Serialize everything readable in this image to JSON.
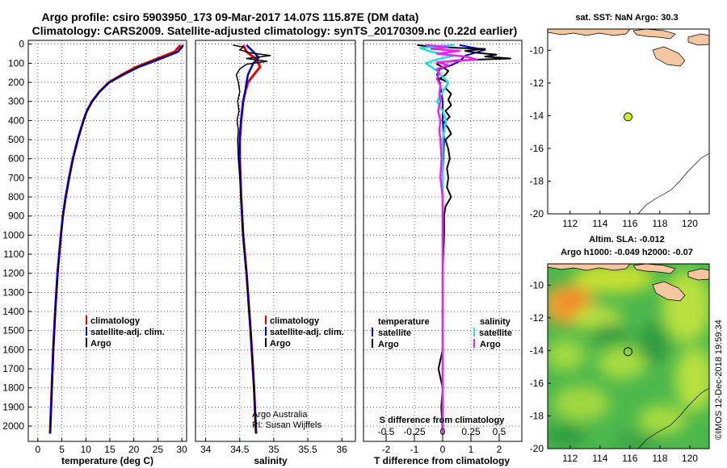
{
  "title_line1": "Argo profile: csiro 5903950_173 09-Mar-2017 14.07S 115.87E (DM data)",
  "title_line2": "Climatology: CARS2009. Satellite-adjusted climatology: synTS_20170309.nc (0.22d earlier)",
  "watermark": "©IMOS 12-Dec-2018 19:59:34",
  "colors": {
    "climatology": "#e00000",
    "satellite": "#0000cc",
    "argo": "#000000",
    "sal_sat": "#22dddd",
    "sal_argo": "#ee22ee",
    "land": "#f4c7a1",
    "map_dot": "#ccee22"
  },
  "chart_data": [
    {
      "id": "temperature",
      "type": "line",
      "xlabel": "temperature (deg C)",
      "ylabel": "",
      "xlim": [
        -2,
        31
      ],
      "ylim": [
        2080,
        -20
      ],
      "xticks": [
        0,
        5,
        10,
        15,
        20,
        25,
        30
      ],
      "yticks": [
        0,
        100,
        200,
        300,
        400,
        500,
        600,
        700,
        800,
        900,
        1000,
        1100,
        1200,
        1300,
        1400,
        1500,
        1600,
        1700,
        1800,
        1900,
        2000
      ],
      "legend": [
        "climatology",
        "satellite-adj. clim.",
        "Argo"
      ],
      "series": [
        {
          "name": "climatology",
          "depth": [
            5,
            40,
            80,
            120,
            160,
            200,
            250,
            300,
            350,
            400,
            450,
            500,
            600,
            700,
            800,
            900,
            1000,
            1200,
            1400,
            1600,
            1800,
            2000,
            2040
          ],
          "values": [
            29.7,
            28.5,
            24.5,
            20.5,
            17.5,
            14.8,
            12.8,
            11.3,
            10.2,
            9.5,
            8.9,
            8.3,
            7.3,
            6.5,
            5.8,
            5.2,
            4.8,
            4.1,
            3.6,
            3.2,
            2.9,
            2.6,
            2.55
          ]
        },
        {
          "name": "satellite-adj. clim.",
          "depth": [
            5,
            40,
            80,
            120,
            160,
            200,
            250,
            300,
            350,
            400,
            450,
            500,
            600,
            700,
            800,
            900,
            1000,
            1200,
            1400,
            1600,
            1800,
            2000,
            2040
          ],
          "values": [
            30.3,
            29.2,
            25.2,
            21,
            17.8,
            14.9,
            12.8,
            11.3,
            10.2,
            9.5,
            8.9,
            8.3,
            7.3,
            6.5,
            5.8,
            5.2,
            4.8,
            4.1,
            3.6,
            3.2,
            2.9,
            2.6,
            2.55
          ]
        },
        {
          "name": "Argo",
          "depth": [
            5,
            20,
            45,
            80,
            120,
            160,
            200,
            250,
            300,
            350,
            400,
            450,
            500,
            600,
            700,
            800,
            900,
            1000,
            1200,
            1400,
            1600,
            1800,
            2000,
            2030
          ],
          "values": [
            30.3,
            30.1,
            28.8,
            24.6,
            20.7,
            17.6,
            14.9,
            12.9,
            11.4,
            10.3,
            9.6,
            9,
            8.4,
            7.4,
            6.6,
            5.9,
            5.3,
            4.9,
            4.2,
            3.7,
            3.3,
            3,
            2.7,
            2.65
          ]
        }
      ]
    },
    {
      "id": "salinity",
      "type": "line",
      "xlabel": "salinity",
      "ylabel": "",
      "xlim": [
        33.85,
        36.2
      ],
      "ylim": [
        2080,
        -20
      ],
      "xticks": [
        34,
        34.5,
        35,
        35.5,
        36
      ],
      "xtick_labels": [
        "34",
        "34.5",
        "35",
        "35.5",
        "36"
      ],
      "legend": [
        "climatology",
        "satellite-adj. clim.",
        "Argo"
      ],
      "credit_line1": "Argo Australia",
      "credit_line2": "PI: Susan Wijffels",
      "series": [
        {
          "name": "climatology",
          "depth": [
            5,
            40,
            80,
            120,
            150,
            200,
            250,
            300,
            400,
            500,
            600,
            800,
            1000,
            1200,
            1500,
            1800,
            2040
          ],
          "values": [
            34.55,
            34.6,
            34.75,
            34.8,
            34.73,
            34.62,
            34.58,
            34.55,
            34.52,
            34.5,
            34.5,
            34.52,
            34.55,
            34.6,
            34.66,
            34.71,
            34.74
          ]
        },
        {
          "name": "satellite-adj. clim.",
          "depth": [
            5,
            40,
            70,
            100,
            130,
            160,
            200,
            250,
            300,
            400,
            500,
            600,
            800,
            1000,
            1200,
            1500,
            1800,
            2040
          ],
          "values": [
            34.6,
            34.7,
            34.78,
            34.7,
            34.66,
            34.62,
            34.6,
            34.58,
            34.55,
            34.52,
            34.5,
            34.5,
            34.52,
            34.55,
            34.6,
            34.66,
            34.71,
            34.74
          ]
        },
        {
          "name": "Argo",
          "depth": [
            5,
            15,
            30,
            45,
            60,
            75,
            90,
            105,
            130,
            160,
            200,
            250,
            300,
            350,
            400,
            450,
            500,
            600,
            700,
            800,
            1000,
            1200,
            1400,
            1600,
            1800,
            2000,
            2030
          ],
          "values": [
            34.4,
            34.55,
            34.5,
            34.65,
            34.95,
            34.6,
            34.9,
            34.6,
            34.5,
            34.45,
            34.48,
            34.5,
            34.47,
            34.49,
            34.46,
            34.48,
            34.47,
            34.48,
            34.5,
            34.52,
            34.55,
            34.6,
            34.64,
            34.68,
            34.71,
            34.73,
            34.74
          ]
        }
      ]
    },
    {
      "id": "difference",
      "type": "line",
      "xlabel": "T difference from climatology",
      "xlabel2": "S difference from climatology",
      "xlim": [
        -2.8,
        2.8
      ],
      "ylim": [
        2080,
        -20
      ],
      "xticks": [
        -2,
        -1,
        0,
        1,
        2
      ],
      "xtick_labels": [
        "-2",
        "-1",
        "0",
        "1",
        "2"
      ],
      "s_ticks": [
        -0.5,
        -0.25,
        0,
        0.25,
        0.5
      ],
      "s_tick_labels": [
        "-0.5",
        "-0.25",
        "0",
        "0.25",
        "0.5"
      ],
      "legend_left_title": "temperature",
      "legend_right_title": "salinity",
      "legend_left": [
        "satellite",
        "Argo"
      ],
      "legend_right": [
        "satellite",
        "Argo"
      ],
      "series": [
        {
          "name": "T satellite",
          "depth": [
            5,
            30,
            60,
            90,
            110,
            130,
            160,
            200,
            250,
            300,
            400,
            500,
            700,
            900,
            1200,
            1500,
            2040
          ],
          "values": [
            0.6,
            1.5,
            0.8,
            0.6,
            0.3,
            -0.1,
            -0.2,
            -0.1,
            -0.05,
            0,
            0,
            0.05,
            0,
            0,
            0,
            0,
            0
          ]
        },
        {
          "name": "T Argo",
          "depth": [
            5,
            15,
            25,
            35,
            45,
            55,
            65,
            75,
            85,
            95,
            105,
            120,
            140,
            160,
            180,
            200,
            230,
            260,
            290,
            320,
            350,
            380,
            410,
            440,
            470,
            500,
            550,
            600,
            650,
            700,
            750,
            800,
            850,
            900,
            1000,
            1200,
            1400,
            1600,
            1700,
            1800,
            1900,
            2040
          ],
          "values": [
            -0.9,
            -0.3,
            1.5,
            0.8,
            1.2,
            1.9,
            1.5,
            2.4,
            0.5,
            -0.1,
            -0.2,
            0,
            0.2,
            0.1,
            -0.1,
            0.2,
            0.1,
            0.3,
            0.2,
            0.3,
            0.1,
            0.25,
            0.05,
            0.2,
            0.3,
            0.1,
            0.2,
            0.25,
            0.15,
            0.2,
            0.15,
            0.3,
            0.1,
            0.05,
            0.05,
            0,
            0,
            0,
            -0.15,
            0,
            -0.05,
            0
          ]
        },
        {
          "name": "S satellite",
          "depth": [
            5,
            20,
            40,
            60,
            80,
            100,
            120,
            140,
            170,
            200,
            250,
            300,
            350,
            400,
            500,
            700,
            900,
            1200,
            1500,
            2040
          ],
          "values": [
            0.1,
            -0.2,
            -0.1,
            0.1,
            -0.05,
            -0.15,
            -0.1,
            -0.05,
            0,
            0.05,
            0,
            -0.05,
            0,
            0.03,
            0,
            0,
            0,
            0,
            0,
            0
          ]
        },
        {
          "name": "S Argo",
          "depth": [
            5,
            15,
            25,
            35,
            50,
            65,
            80,
            95,
            110,
            130,
            150,
            180,
            220,
            260,
            300,
            350,
            400,
            450,
            500,
            600,
            700,
            800,
            1000,
            1200,
            1400,
            1600,
            1800,
            2040
          ],
          "values": [
            -0.15,
            0.05,
            -0.1,
            0.15,
            -0.05,
            0.2,
            0.3,
            -0.05,
            0.05,
            -0.05,
            -0.03,
            -0.05,
            -0.02,
            -0.03,
            -0.02,
            -0.04,
            -0.02,
            -0.03,
            -0.02,
            -0.01,
            -0.02,
            0,
            0,
            0,
            0,
            0,
            0,
            0
          ]
        }
      ]
    },
    {
      "id": "sst_map",
      "type": "scatter",
      "title": "sat. SST: NaN Argo: 30.3",
      "xlim": [
        110.5,
        121.3
      ],
      "ylim": [
        -20,
        -8.7
      ],
      "xticks": [
        112,
        114,
        116,
        118,
        120
      ],
      "yticks": [
        -10,
        -12,
        -14,
        -16,
        -18,
        -20
      ],
      "point": {
        "lon": 115.87,
        "lat": -14.07
      }
    },
    {
      "id": "sla_map",
      "type": "heatmap",
      "title_line1": "Altim. SLA: -0.012",
      "title_line2": "Argo h1000: -0.049 h2000: -0.07",
      "xlim": [
        110.5,
        121.3
      ],
      "ylim": [
        -20,
        -8.7
      ],
      "xticks": [
        112,
        114,
        116,
        118,
        120
      ],
      "yticks": [
        -10,
        -12,
        -14,
        -16,
        -18,
        -20
      ],
      "point": {
        "lon": 115.87,
        "lat": -14.07
      }
    }
  ]
}
